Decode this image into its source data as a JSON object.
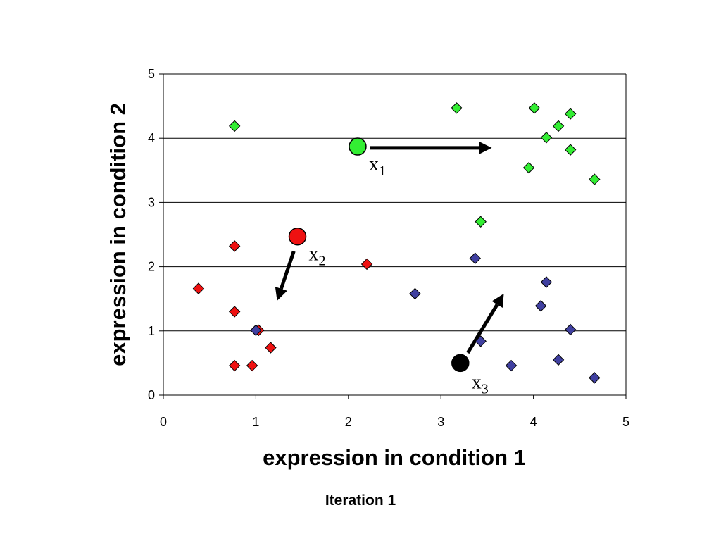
{
  "caption": "Iteration 1",
  "chart_data": {
    "type": "scatter",
    "title": "",
    "xlabel": "expression in condition 1",
    "ylabel": "expression in condition 2",
    "xlim": [
      0,
      5
    ],
    "ylim": [
      0,
      5
    ],
    "xticks": [
      "0",
      "1",
      "2",
      "3",
      "4",
      "5"
    ],
    "yticks": [
      "0",
      "1",
      "2",
      "3",
      "4",
      "5"
    ],
    "grid": "horizontal",
    "legend": "none",
    "series": [
      {
        "color": "#33ee33",
        "marker": "diamond",
        "points": [
          [
            0.77,
            4.19
          ],
          [
            3.17,
            4.47
          ],
          [
            4.01,
            4.47
          ],
          [
            4.4,
            4.38
          ],
          [
            4.27,
            4.19
          ],
          [
            4.14,
            4.01
          ],
          [
            4.4,
            3.82
          ],
          [
            3.95,
            3.54
          ],
          [
            4.66,
            3.36
          ],
          [
            3.43,
            2.7
          ]
        ]
      },
      {
        "color": "#ee1111",
        "marker": "diamond",
        "points": [
          [
            0.77,
            2.32
          ],
          [
            0.38,
            1.66
          ],
          [
            2.2,
            2.04
          ],
          [
            0.77,
            1.3
          ],
          [
            1.03,
            1.01
          ],
          [
            1.16,
            0.74
          ],
          [
            0.77,
            0.46
          ],
          [
            0.96,
            0.46
          ]
        ]
      },
      {
        "color": "#4040a0",
        "marker": "diamond",
        "points": [
          [
            3.37,
            2.13
          ],
          [
            2.72,
            1.58
          ],
          [
            4.14,
            1.76
          ],
          [
            4.08,
            1.39
          ],
          [
            1.0,
            1.01
          ],
          [
            4.4,
            1.02
          ],
          [
            3.43,
            0.84
          ],
          [
            3.76,
            0.46
          ],
          [
            4.27,
            0.55
          ],
          [
            4.66,
            0.27
          ]
        ]
      }
    ],
    "centroids": [
      {
        "label": "x",
        "sub": "1",
        "color": "#33ee33",
        "x": 2.1,
        "y": 3.87,
        "arrow_from": [
          2.23,
          3.85
        ],
        "arrow_to": [
          3.55,
          3.85
        ]
      },
      {
        "label": "x",
        "sub": "2",
        "color": "#ee1111",
        "x": 1.45,
        "y": 2.47,
        "arrow_from": [
          1.41,
          2.24
        ],
        "arrow_to": [
          1.23,
          1.47
        ]
      },
      {
        "label": "x",
        "sub": "3",
        "color": "#000000",
        "x": 3.21,
        "y": 0.5,
        "arrow_from": [
          3.29,
          0.66
        ],
        "arrow_to": [
          3.68,
          1.58
        ]
      }
    ]
  }
}
